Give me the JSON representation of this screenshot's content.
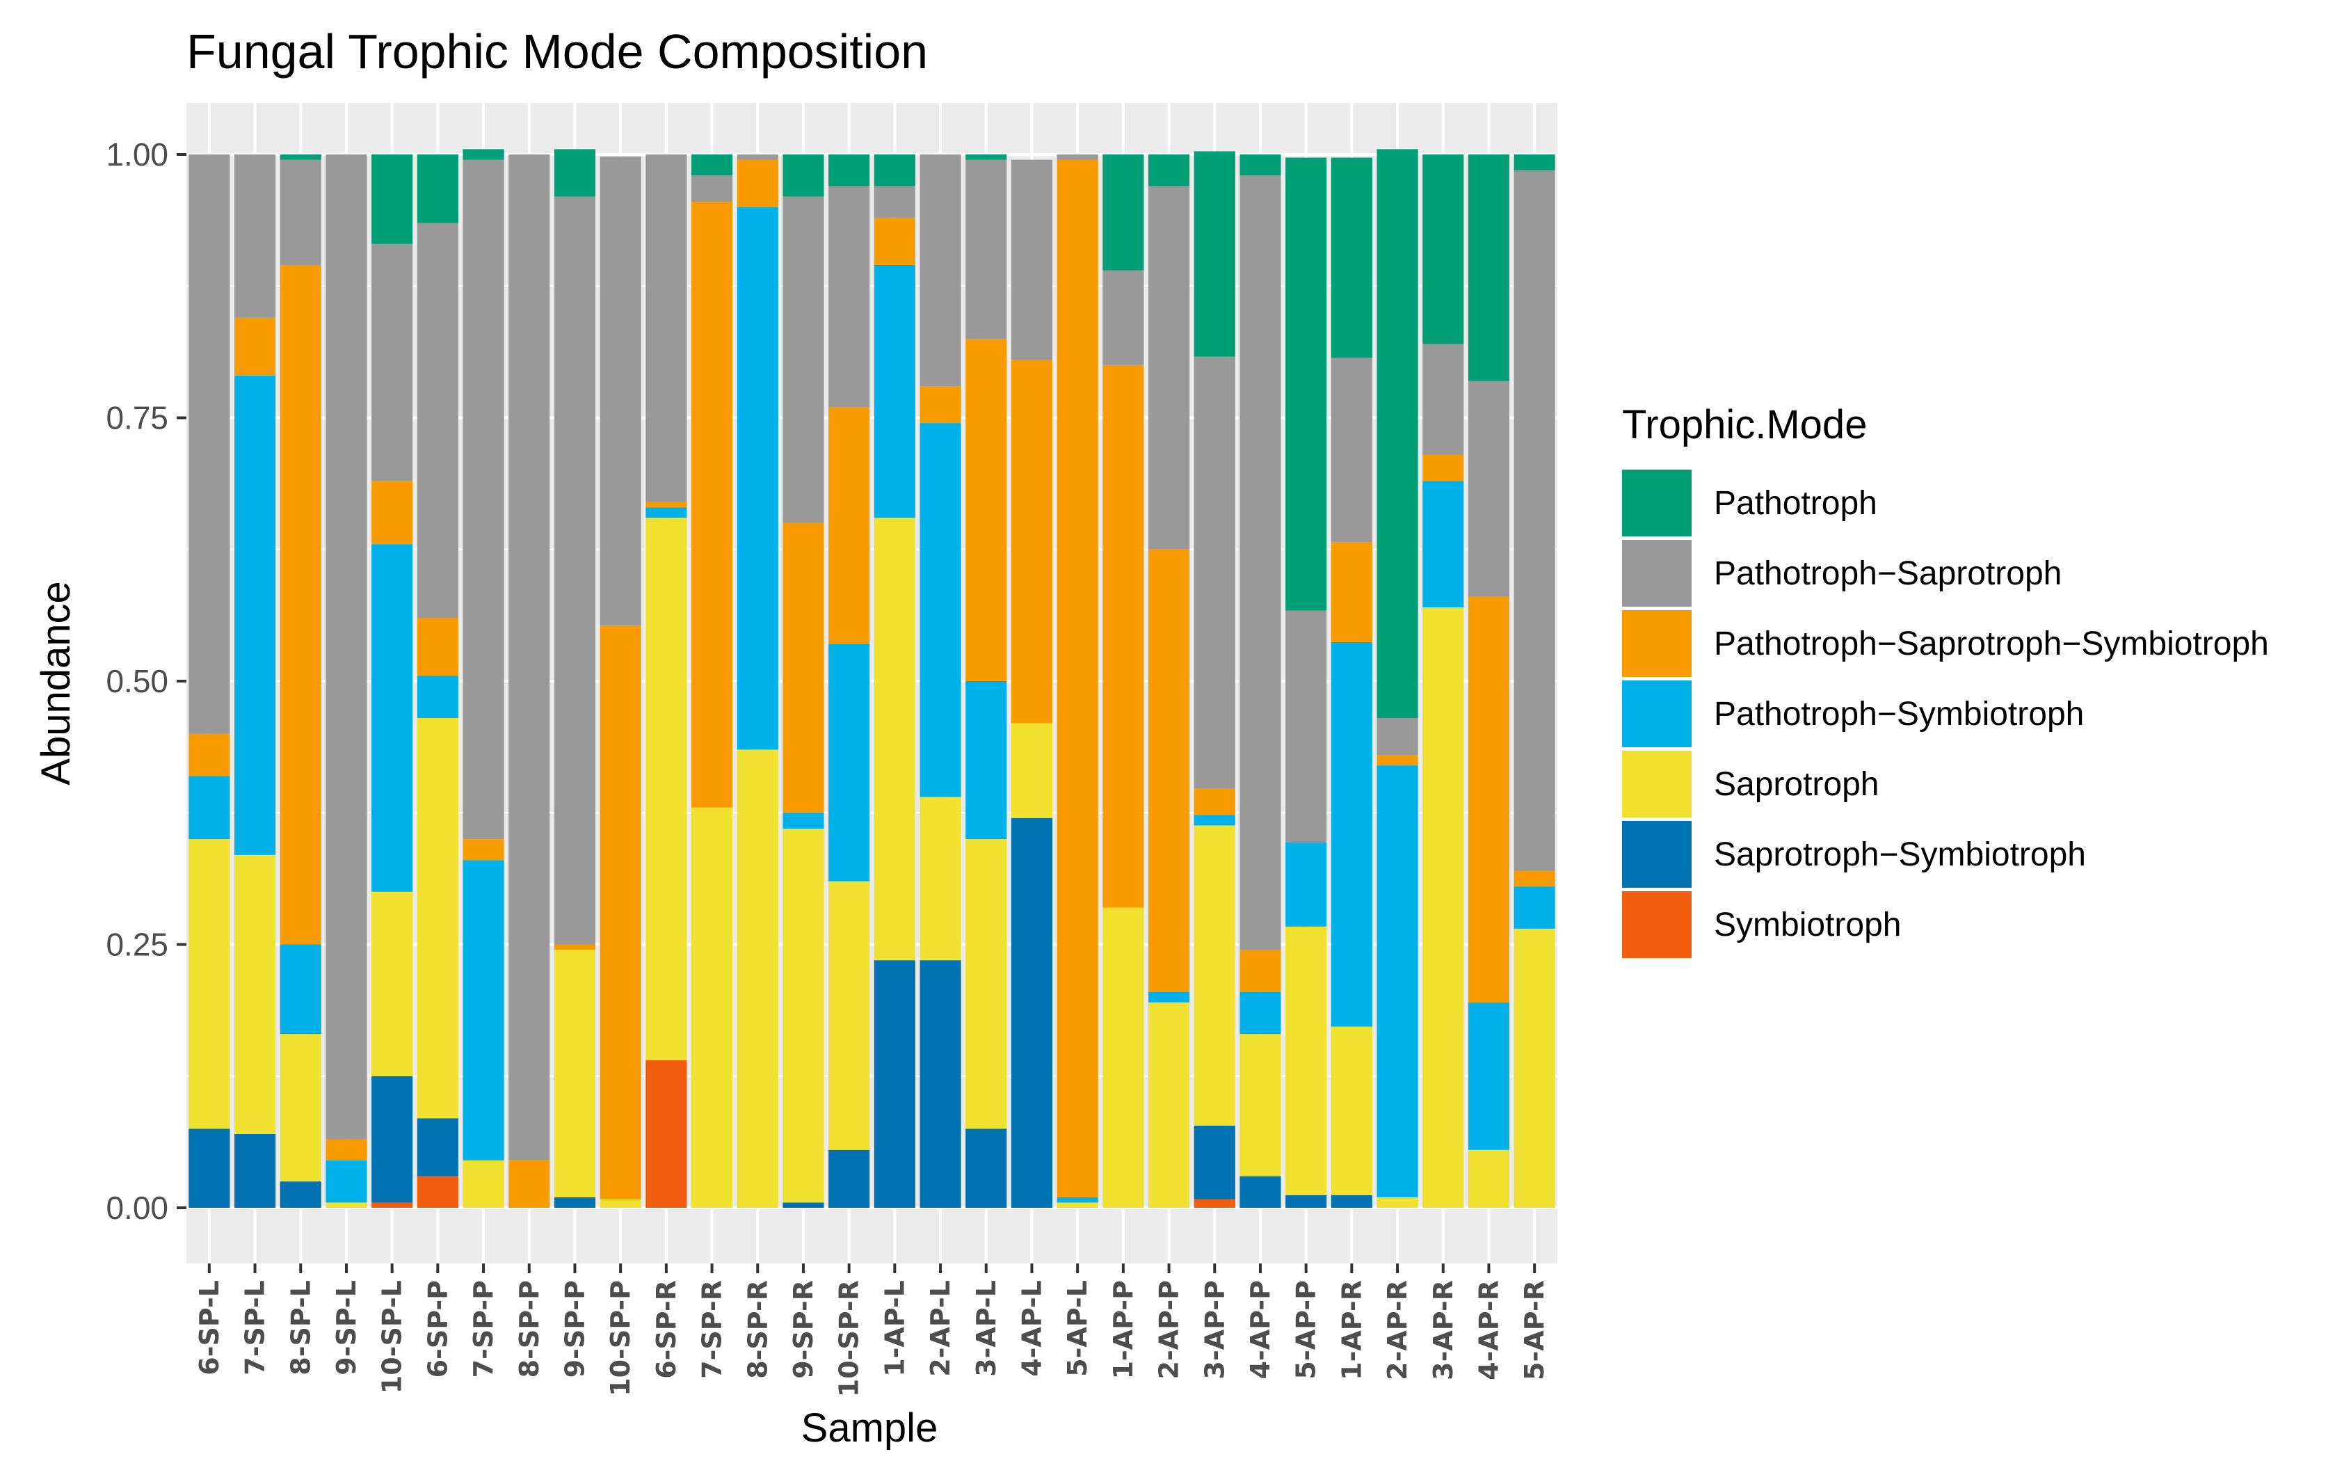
{
  "chart_data": {
    "type": "bar",
    "stacked": true,
    "title": "Fungal Trophic Mode Composition",
    "xlabel": "Sample",
    "ylabel": "Abundance",
    "ylim": [
      0,
      1
    ],
    "yticks": [
      "0.00",
      "0.25",
      "0.50",
      "0.75",
      "1.00"
    ],
    "grid": true,
    "legend": {
      "title": "Trophic.Mode",
      "position": "right"
    },
    "categories": [
      "6-SP-L",
      "7-SP-L",
      "8-SP-L",
      "9-SP-L",
      "10-SP-L",
      "6-SP-P",
      "7-SP-P",
      "8-SP-P",
      "9-SP-P",
      "10-SP-P",
      "6-SP-R",
      "7-SP-R",
      "8-SP-R",
      "9-SP-R",
      "10-SP-R",
      "1-AP-L",
      "2-AP-L",
      "3-AP-L",
      "4-AP-L",
      "5-AP-L",
      "1-AP-P",
      "2-AP-P",
      "3-AP-P",
      "4-AP-P",
      "5-AP-P",
      "1-AP-R",
      "2-AP-R",
      "3-AP-R",
      "4-AP-R",
      "5-AP-R"
    ],
    "series": [
      {
        "name": "Symbiotroph",
        "color": "#f05d0e",
        "values": [
          0,
          0,
          0,
          0,
          0.005,
          0.03,
          0,
          0,
          0,
          0,
          0.14,
          0,
          0,
          0,
          0,
          0,
          0,
          0,
          0,
          0,
          0,
          0,
          0.008,
          0,
          0,
          0,
          0,
          0,
          0,
          0
        ]
      },
      {
        "name": "Saprotroph−Symbiotroph",
        "color": "#0072b2",
        "values": [
          0.075,
          0.07,
          0.025,
          0,
          0.12,
          0.055,
          0,
          0,
          0.01,
          0,
          0,
          0,
          0,
          0.005,
          0.055,
          0.235,
          0.235,
          0.075,
          0.37,
          0,
          0,
          0,
          0.07,
          0.03,
          0.012,
          0.012,
          0,
          0,
          0,
          0
        ]
      },
      {
        "name": "Saprotroph",
        "color": "#f0e130",
        "values": [
          0.275,
          0.265,
          0.14,
          0.005,
          0.175,
          0.38,
          0.045,
          0,
          0.235,
          0.008,
          0.515,
          0.38,
          0.435,
          0.355,
          0.255,
          0.42,
          0.155,
          0.275,
          0.09,
          0.005,
          0.285,
          0.195,
          0.285,
          0.135,
          0.255,
          0.16,
          0.01,
          0.57,
          0.055,
          0.265
        ]
      },
      {
        "name": "Pathotroph−Symbiotroph",
        "color": "#00b0e8",
        "values": [
          0.06,
          0.455,
          0.085,
          0.04,
          0.33,
          0.04,
          0.285,
          0,
          0,
          0,
          0.01,
          0,
          0.515,
          0.015,
          0.225,
          0.24,
          0.355,
          0.15,
          0,
          0.005,
          0,
          0.01,
          0.01,
          0.04,
          0.08,
          0.365,
          0.41,
          0.12,
          0.14,
          0.04
        ]
      },
      {
        "name": "Pathotroph−Saprotroph−Symbiotroph",
        "color": "#f79b00",
        "values": [
          0.04,
          0.055,
          0.645,
          0.02,
          0.06,
          0.055,
          0.02,
          0.045,
          0.005,
          0.545,
          0.005,
          0.575,
          0.045,
          0.275,
          0.225,
          0.045,
          0.035,
          0.325,
          0.345,
          0.985,
          0.515,
          0.42,
          0.025,
          0.04,
          0,
          0.095,
          0.01,
          0.025,
          0.385,
          0.015
        ]
      },
      {
        "name": "Pathotroph−Saprotroph",
        "color": "#999999",
        "values": [
          0.55,
          0.155,
          0.1,
          0.935,
          0.225,
          0.375,
          0.645,
          0.955,
          0.71,
          0.445,
          0.33,
          0.025,
          0.005,
          0.31,
          0.21,
          0.03,
          0.22,
          0.17,
          0.19,
          0.005,
          0.09,
          0.345,
          0.41,
          0.735,
          0.22,
          0.175,
          0.035,
          0.105,
          0.205,
          0.665
        ]
      },
      {
        "name": "Pathotroph",
        "color": "#009e73",
        "values": [
          0,
          0,
          0.005,
          0,
          0.085,
          0.065,
          0.01,
          0,
          0.045,
          0,
          0,
          0.02,
          0,
          0.04,
          0.03,
          0.03,
          0,
          0.005,
          0,
          0,
          0.11,
          0.03,
          0.195,
          0.02,
          0.43,
          0.19,
          0.54,
          0.18,
          0.215,
          0.015
        ]
      }
    ],
    "legend_order": [
      "Pathotroph",
      "Pathotroph−Saprotroph",
      "Pathotroph−Saprotroph−Symbiotroph",
      "Pathotroph−Symbiotroph",
      "Saprotroph",
      "Saprotroph−Symbiotroph",
      "Symbiotroph"
    ]
  }
}
